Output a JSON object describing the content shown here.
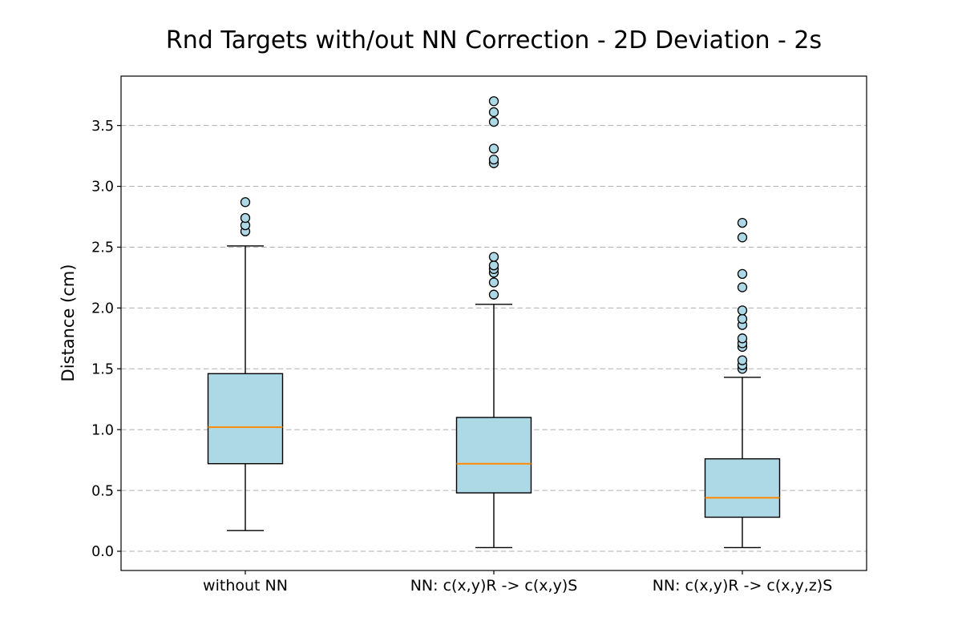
{
  "chart_data": {
    "type": "boxplot",
    "title": "Rnd Targets with/out NN Correction - 2D Deviation - 2s",
    "ylabel": "Distance (cm)",
    "xlabel": "",
    "categories": [
      "without NN",
      "NN: c(x,y)R -> c(x,y)S",
      "NN: c(x,y)R -> c(x,y,z)S"
    ],
    "yticks": [
      0.0,
      0.5,
      1.0,
      1.5,
      2.0,
      2.5,
      3.0,
      3.5
    ],
    "ytick_labels": [
      "0.0",
      "0.5",
      "1.0",
      "1.5",
      "2.0",
      "2.5",
      "3.0",
      "3.5"
    ],
    "ylim": [
      -0.158,
      3.906
    ],
    "grid": {
      "axis": "y",
      "style": "dashed",
      "color": "#b0b0b0"
    },
    "legend": "none",
    "boxes": [
      {
        "category": "without NN",
        "whisker_low": 0.17,
        "q1": 0.72,
        "median": 1.02,
        "q3": 1.46,
        "whisker_high": 2.51,
        "outliers": [
          2.63,
          2.68,
          2.74,
          2.87
        ]
      },
      {
        "category": "NN: c(x,y)R -> c(x,y)S",
        "whisker_low": 0.03,
        "q1": 0.48,
        "median": 0.72,
        "q3": 1.1,
        "whisker_high": 2.03,
        "outliers": [
          2.11,
          2.21,
          2.29,
          2.32,
          2.35,
          2.42,
          3.19,
          3.22,
          3.31,
          3.53,
          3.61,
          3.7
        ]
      },
      {
        "category": "NN: c(x,y)R -> c(x,y,z)S",
        "whisker_low": 0.03,
        "q1": 0.28,
        "median": 0.44,
        "q3": 0.76,
        "whisker_high": 1.43,
        "outliers": [
          1.5,
          1.53,
          1.57,
          1.68,
          1.71,
          1.75,
          1.86,
          1.91,
          1.98,
          2.17,
          2.28,
          2.58,
          2.7
        ]
      }
    ],
    "colors": {
      "box_fill": "#add8e6",
      "box_edge": "#000000",
      "median": "#ff8c00",
      "whisker": "#000000",
      "flier_fill": "#add8e6",
      "flier_edge": "#000000",
      "grid": "#b0b0b0",
      "spine": "#000000",
      "background": "#ffffff"
    }
  }
}
